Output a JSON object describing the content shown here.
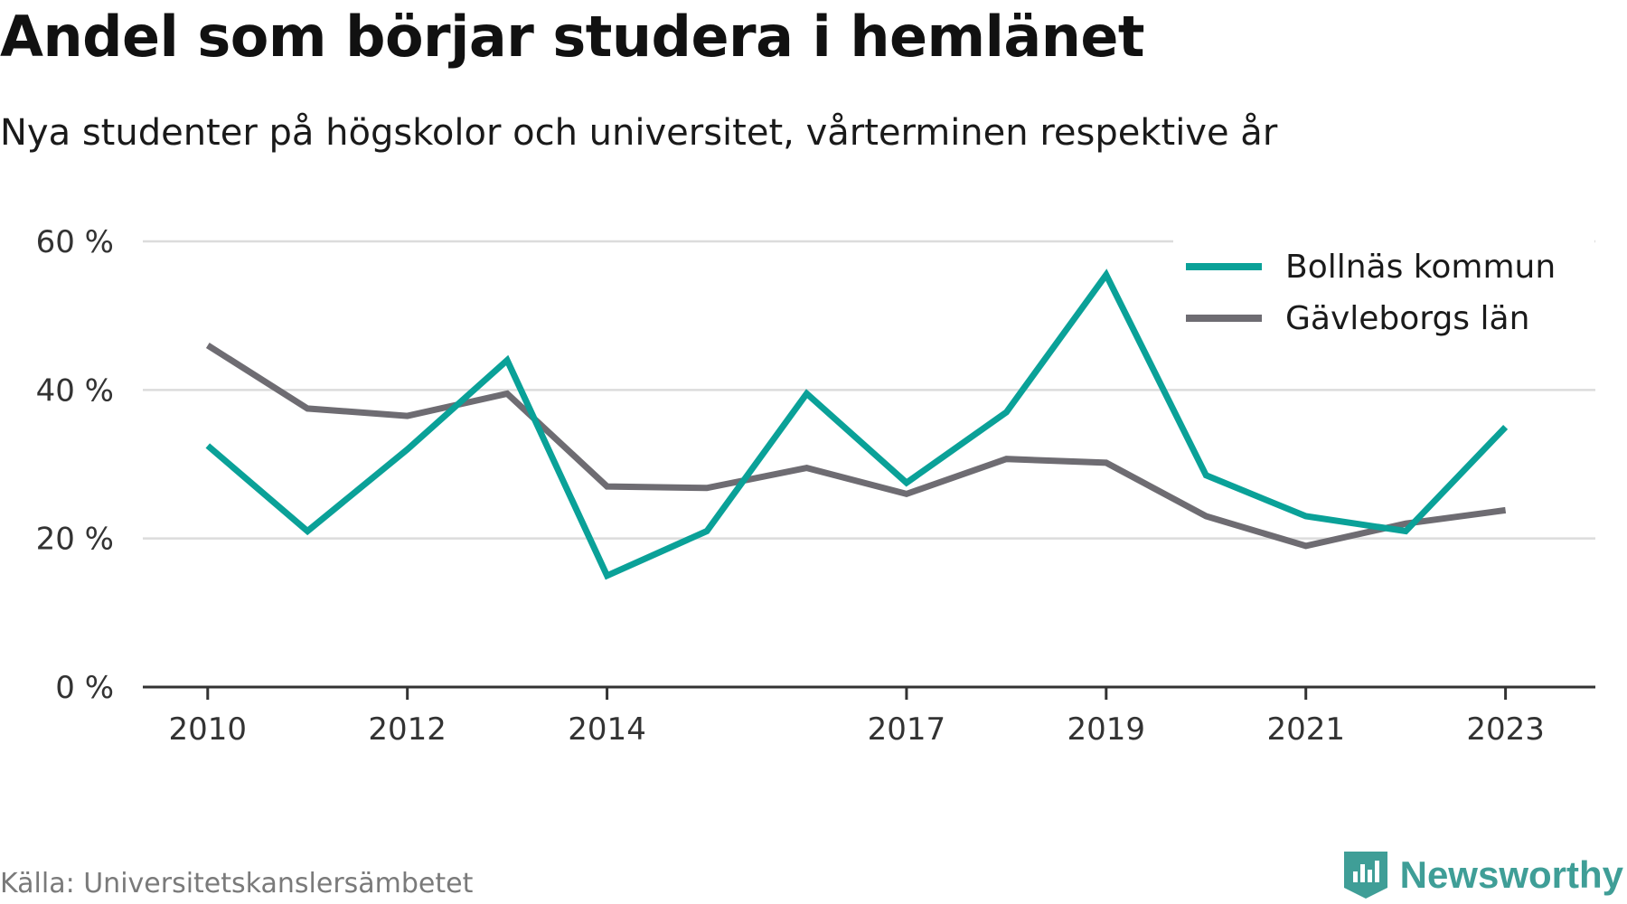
{
  "title": "Andel som börjar studera i hemlänet",
  "subtitle": "Nya studenter på högskolor och universitet, vårterminen respektive år",
  "source": "Källa: Universitetskanslersämbetet",
  "brand": {
    "name": "Newsworthy",
    "icon": "newsworthy-logo-icon",
    "color": "#3f9e97"
  },
  "chart_data": {
    "type": "line",
    "x": [
      2010,
      2011,
      2012,
      2013,
      2014,
      2015,
      2016,
      2017,
      2018,
      2019,
      2020,
      2021,
      2022,
      2023
    ],
    "xticks": [
      "2010",
      "2012",
      "2014",
      "2017",
      "2019",
      "2021",
      "2023"
    ],
    "xtick_values": [
      2010,
      2012,
      2014,
      2017,
      2019,
      2021,
      2023
    ],
    "yticks": [
      "0 %",
      "20 %",
      "40 %",
      "60 %"
    ],
    "ytick_values": [
      0,
      20,
      40,
      60
    ],
    "ylim": [
      0,
      60
    ],
    "grid": true,
    "legend_position": "top-right",
    "series": [
      {
        "name": "Bollnäs kommun",
        "color": "#0aa198",
        "values": [
          32.5,
          21.0,
          32.0,
          44.0,
          15.0,
          21.0,
          39.5,
          27.5,
          37.0,
          55.5,
          28.5,
          23.0,
          21.0,
          35.0
        ]
      },
      {
        "name": "Gävleborgs län",
        "color": "#6e6c72",
        "values": [
          46.0,
          37.5,
          36.5,
          39.5,
          27.0,
          26.8,
          29.5,
          26.0,
          30.7,
          30.2,
          23.0,
          19.0,
          22.0,
          23.8
        ]
      }
    ]
  }
}
